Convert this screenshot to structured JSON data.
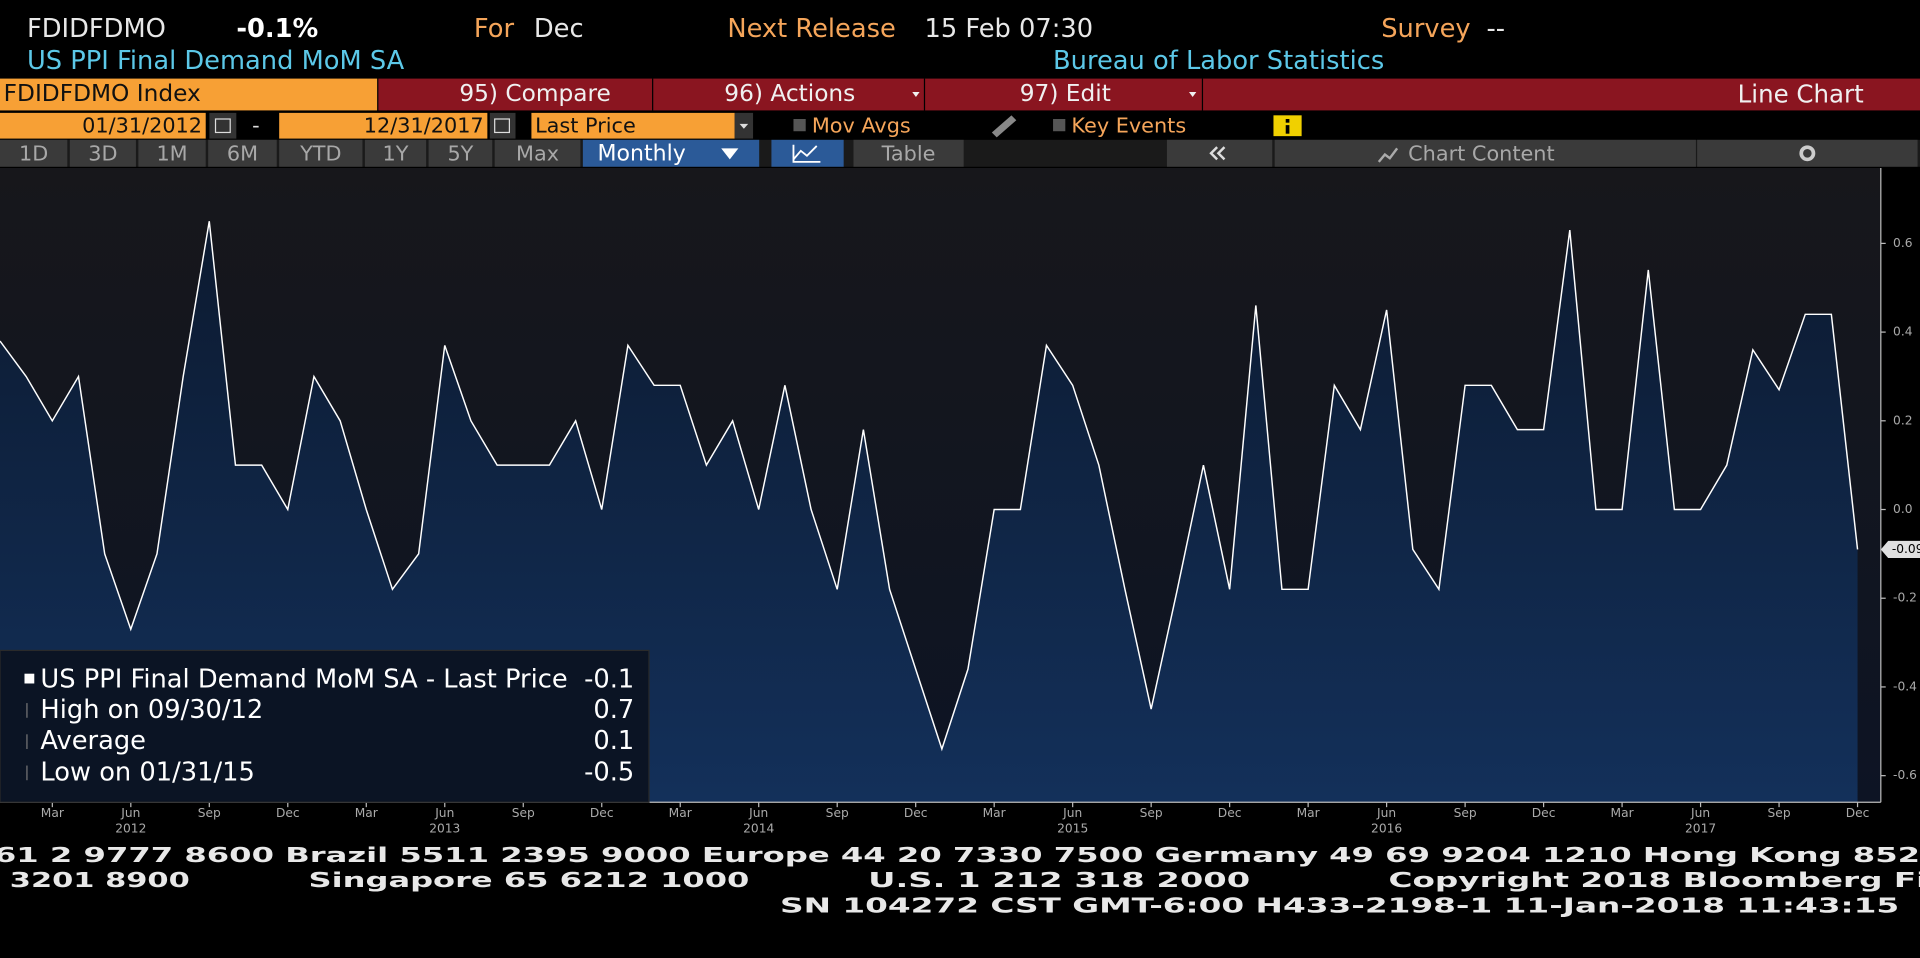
{
  "header": {
    "ticker": "FDIDFDMO",
    "change": "-0.1%",
    "for_label": "For",
    "for_value": "Dec",
    "next_release_label": "Next Release",
    "next_release_value": "15 Feb 07:30",
    "survey_label": "Survey",
    "survey_value": "--",
    "name": "US PPI Final Demand MoM SA",
    "source": "Bureau of Labor Statistics"
  },
  "toolbar": {
    "security": "FDIDFDMO Index",
    "compare": "95) Compare",
    "actions": "96) Actions",
    "edit": "97) Edit",
    "view": "Line Chart"
  },
  "controls": {
    "start_date": "01/31/2012",
    "separator": "-",
    "end_date": "12/31/2017",
    "field": "Last Price",
    "mov_avgs": "Mov Avgs",
    "key_events": "Key Events"
  },
  "ranges": [
    "1D",
    "3D",
    "1M",
    "6M",
    "YTD",
    "1Y",
    "5Y",
    "Max"
  ],
  "period": "Monthly",
  "table": "Table",
  "chart_content": "Chart Content",
  "chart_data": {
    "type": "area",
    "color": "#ffffff",
    "fill_color": "#10294c",
    "categories": [
      null,
      null,
      "Mar",
      null,
      null,
      "Jun",
      null,
      null,
      "Sep",
      null,
      null,
      "Dec",
      null,
      null,
      "Mar",
      null,
      null,
      "Jun",
      null,
      null,
      "Sep",
      null,
      null,
      "Dec",
      null,
      null,
      "Mar",
      null,
      null,
      "Jun",
      null,
      null,
      "Sep",
      null,
      null,
      "Dec",
      null,
      null,
      "Mar",
      null,
      null,
      "Jun",
      null,
      null,
      "Sep",
      null,
      null,
      "Dec",
      null,
      null,
      "Mar",
      null,
      null,
      "Jun",
      null,
      null,
      "Sep",
      null,
      null,
      "Dec",
      null,
      null,
      "Mar",
      null,
      null,
      "Jun",
      null,
      null,
      "Sep",
      null,
      null,
      "Dec"
    ],
    "years": [
      "2012",
      "2013",
      "2014",
      "2015",
      "2016",
      "2017"
    ],
    "values": [
      0.38,
      0.3,
      0.2,
      0.3,
      -0.1,
      -0.27,
      -0.1,
      0.3,
      0.65,
      0.1,
      0.1,
      0,
      0.3,
      0.2,
      0,
      -0.18,
      -0.1,
      0.37,
      0.2,
      0.1,
      0.1,
      0.1,
      0.2,
      0,
      0.37,
      0.28,
      0.28,
      0.1,
      0.2,
      0,
      0.28,
      0,
      -0.18,
      0.18,
      -0.18,
      -0.36,
      -0.54,
      -0.36,
      0,
      0,
      0.37,
      0.28,
      0.1,
      -0.18,
      -0.45,
      -0.18,
      0.1,
      -0.18,
      0.46,
      -0.18,
      -0.18,
      0.28,
      0.18,
      0.45,
      -0.09,
      -0.18,
      0.28,
      0.28,
      0.18,
      0.18,
      0.63,
      0,
      0,
      0.54,
      0,
      0,
      0.1,
      0.36,
      0.27,
      0.44,
      0.44,
      -0.09
    ],
    "ylim": [
      -0.66,
      0.77
    ],
    "yticks": [
      0.6,
      0.4,
      0.2,
      {
        "value": 0,
        "label": "0.0"
      },
      -0.2,
      -0.4,
      -0.6
    ],
    "legend": {
      "title": "US PPI Final Demand MoM SA - Last Price",
      "title_value": -0.1,
      "rows": [
        {
          "label": "High on 09/30/12",
          "value": 0.7
        },
        {
          "label": "Average",
          "value": 0.1
        },
        {
          "label": "Low on 01/31/15",
          "value": -0.5
        }
      ]
    }
  },
  "footer": {
    "lines": [
      [
        "61 2 9777 8600 Brazil 5511 2395 9000 Europe 44 20 7330 7500 Germany 49 69 9204 1210 Hong Kong 852"
      ],
      [
        "3201 8900",
        "Singapore 65 6212 1000",
        "U.S. 1 212 318 2000",
        "Copyright 2018 Bloomberg Fi"
      ],
      [
        "SN 104272 CST  GMT-6:00 H433-2198-1 11-Jan-2018 11:43:15"
      ]
    ]
  }
}
